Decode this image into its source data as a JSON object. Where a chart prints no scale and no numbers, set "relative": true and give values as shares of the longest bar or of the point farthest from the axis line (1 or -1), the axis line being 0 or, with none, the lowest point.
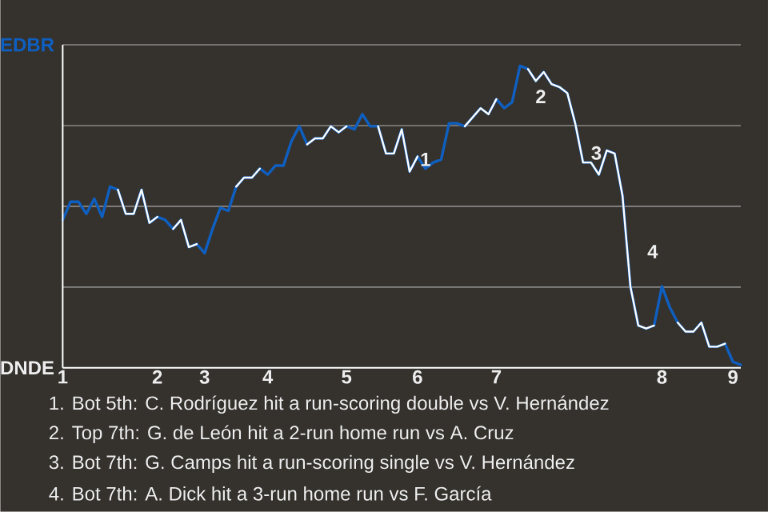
{
  "chart_data": {
    "type": "line",
    "relative": true,
    "categories": [
      "1",
      null,
      null,
      null,
      null,
      null,
      null,
      null,
      null,
      null,
      null,
      null,
      "2",
      null,
      null,
      null,
      null,
      null,
      "3",
      null,
      null,
      null,
      null,
      null,
      null,
      null,
      "4",
      null,
      null,
      null,
      null,
      null,
      null,
      null,
      null,
      null,
      "5",
      null,
      null,
      null,
      null,
      null,
      null,
      null,
      null,
      "6",
      null,
      null,
      null,
      null,
      null,
      null,
      null,
      null,
      null,
      "7",
      null,
      null,
      null,
      null,
      null,
      null,
      null,
      null,
      null,
      null,
      null,
      null,
      null,
      null,
      null,
      null,
      null,
      null,
      null,
      null,
      "8",
      null,
      null,
      null,
      null,
      null,
      null,
      null,
      null,
      "9",
      null
    ],
    "series": [
      {
        "color": "#0f5fc0",
        "values": [
          0.49,
          0.55,
          0.55,
          0.51,
          0.56,
          0.5,
          0.6,
          0.59,
          0.51,
          0.51,
          0.59,
          0.48,
          0.5,
          0.49,
          0.46,
          0.49,
          0.4,
          0.41,
          0.38,
          0.46,
          0.53,
          0.52,
          0.6,
          0.63,
          0.63,
          0.66,
          0.64,
          0.67,
          0.67,
          0.75,
          0.8,
          0.74,
          0.76,
          0.76,
          0.8,
          0.78,
          0.8,
          0.79,
          0.84,
          0.8,
          0.8,
          0.71,
          0.71,
          0.79,
          0.65,
          0.7,
          0.66,
          0.68,
          0.69,
          0.81,
          0.81,
          0.8,
          0.83,
          0.86,
          0.84,
          0.89,
          0.86,
          0.88,
          1,
          0.99,
          0.95,
          0.98,
          0.94,
          0.93,
          0.91,
          0.81,
          0.68,
          0.68,
          0.64,
          0.72,
          0.71,
          0.57,
          0.27,
          0.14,
          0.13,
          0.14,
          0.27,
          0.2,
          0.15,
          0.12,
          0.12,
          0.15,
          0.07,
          0.07,
          0.08,
          0.02,
          0.01
        ]
      },
      {
        "color": "#ffffff",
        "values": [
          null,
          null,
          null,
          null,
          null,
          null,
          null,
          0.59,
          0.51,
          0.51,
          0.59,
          0.48,
          0.5,
          null,
          0.46,
          0.49,
          0.4,
          0.41,
          null,
          null,
          null,
          null,
          0.6,
          0.63,
          0.63,
          0.66,
          null,
          null,
          null,
          null,
          null,
          0.74,
          0.76,
          0.76,
          0.8,
          0.78,
          0.8,
          null,
          null,
          null,
          0.8,
          0.71,
          0.71,
          0.79,
          0.65,
          0.7,
          null,
          null,
          null,
          null,
          null,
          0.8,
          0.83,
          0.86,
          0.84,
          0.89,
          null,
          null,
          null,
          0.99,
          0.95,
          0.98,
          0.94,
          0.93,
          0.91,
          0.81,
          0.68,
          0.68,
          0.64,
          0.72,
          0.71,
          0.57,
          0.27,
          0.14,
          0.13,
          0.14,
          null,
          null,
          0.15,
          0.12,
          0.12,
          0.15,
          0.07,
          0.07,
          0.08,
          null,
          null
        ]
      }
    ],
    "grid": "y",
    "annotations": [
      "1",
      "2",
      "3",
      "4",
      "EDBR",
      "DNDE",
      "1. Bot 5th: C. Rodríguez hit a run-scoring double vs V. Hernández",
      "2. Top 7th: G. de León hit a 2-run home run vs A. Cruz",
      "3. Bot 7th: G. Camps hit a run-scoring single vs V. Hernández",
      "4. Bot 7th: A. Dick hit a 3-run home run vs F. García"
    ]
  }
}
